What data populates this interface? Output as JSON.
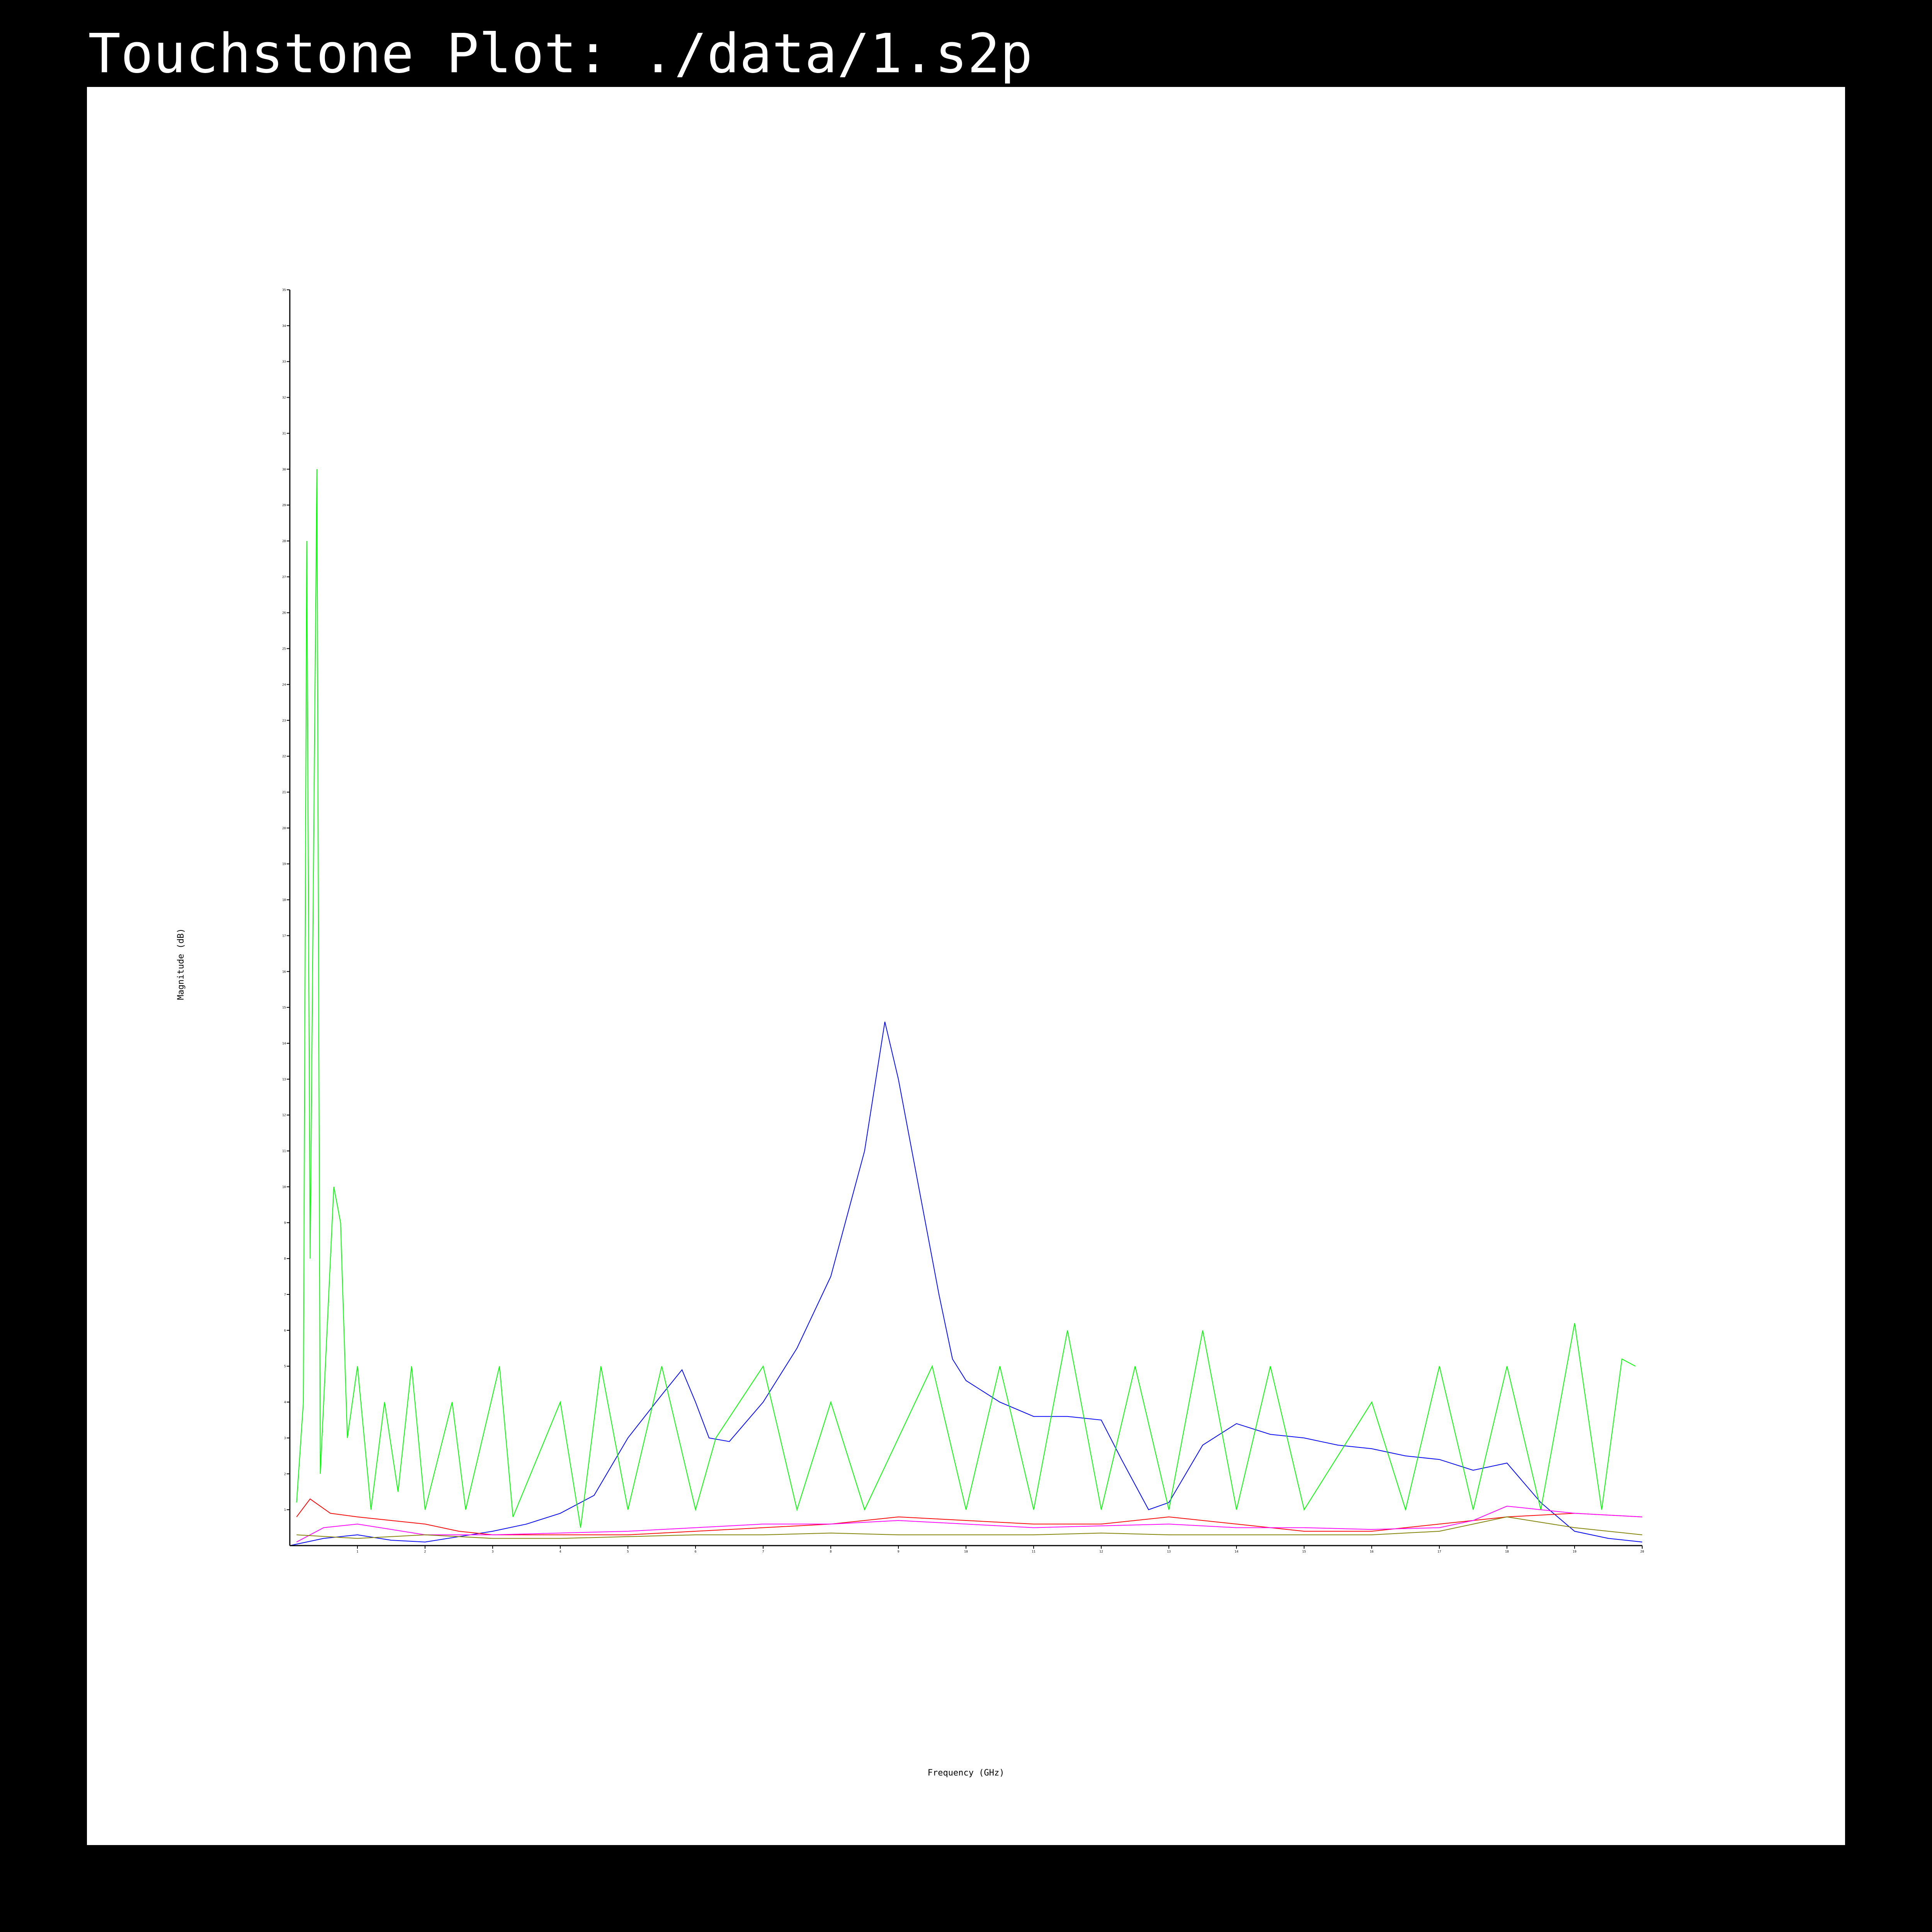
{
  "page": {
    "title": "Touchstone Plot: ./data/1.s2p"
  },
  "colors": {
    "background": "#000000",
    "panel": "#ffffff",
    "axis": "#000000"
  },
  "chart_data": {
    "type": "line",
    "title": "Touchstone Plot: ./data/1.s2p",
    "xlabel": "Frequency (GHz)",
    "ylabel": "Magnitude (dB)",
    "xlim": [
      0,
      20
    ],
    "ylim": [
      0,
      35
    ],
    "xticks": [
      1,
      2,
      3,
      4,
      5,
      6,
      7,
      8,
      9,
      10,
      11,
      12,
      13,
      14,
      15,
      16,
      17,
      18,
      19,
      20
    ],
    "yticks": [
      1,
      2,
      3,
      4,
      5,
      6,
      7,
      8,
      9,
      10,
      11,
      12,
      13,
      14,
      15,
      16,
      17,
      18,
      19,
      20,
      21,
      22,
      23,
      24,
      25,
      26,
      27,
      28,
      29,
      30,
      31,
      32,
      33,
      34,
      35
    ],
    "grid": false,
    "legend": "none",
    "series": [
      {
        "color": "#0000ff",
        "points": [
          [
            0,
            0
          ],
          [
            0.5,
            0.2
          ],
          [
            1,
            0.3
          ],
          [
            1.5,
            0.15
          ],
          [
            2,
            0.1
          ],
          [
            2.5,
            0.25
          ],
          [
            3,
            0.4
          ],
          [
            3.5,
            0.6
          ],
          [
            4,
            0.9
          ],
          [
            4.5,
            1.4
          ],
          [
            5,
            3
          ],
          [
            5.5,
            4.2
          ],
          [
            5.8,
            4.9
          ],
          [
            6,
            4
          ],
          [
            6.2,
            3
          ],
          [
            6.5,
            2.9
          ],
          [
            7,
            4
          ],
          [
            7.5,
            5.5
          ],
          [
            8,
            7.5
          ],
          [
            8.5,
            11
          ],
          [
            8.8,
            14.6
          ],
          [
            9,
            13
          ],
          [
            9.3,
            10
          ],
          [
            9.6,
            7
          ],
          [
            9.8,
            5.2
          ],
          [
            10,
            4.6
          ],
          [
            10.5,
            4
          ],
          [
            11,
            3.6
          ],
          [
            11.5,
            3.6
          ],
          [
            12,
            3.5
          ],
          [
            12.3,
            2.4
          ],
          [
            12.7,
            1
          ],
          [
            13,
            1.2
          ],
          [
            13.5,
            2.8
          ],
          [
            14,
            3.4
          ],
          [
            14.5,
            3.1
          ],
          [
            15,
            3
          ],
          [
            15.5,
            2.8
          ],
          [
            16,
            2.7
          ],
          [
            16.5,
            2.5
          ],
          [
            17,
            2.4
          ],
          [
            17.5,
            2.1
          ],
          [
            18,
            2.3
          ],
          [
            18.5,
            1.2
          ],
          [
            19,
            0.4
          ],
          [
            19.5,
            0.2
          ],
          [
            20,
            0.1
          ]
        ]
      },
      {
        "color": "#00ff00",
        "points": [
          [
            0.1,
            1.2
          ],
          [
            0.2,
            4
          ],
          [
            0.25,
            28
          ],
          [
            0.3,
            8
          ],
          [
            0.4,
            30
          ],
          [
            0.45,
            2
          ],
          [
            0.55,
            6
          ],
          [
            0.65,
            10
          ],
          [
            0.75,
            9
          ],
          [
            0.85,
            3
          ],
          [
            1,
            5
          ],
          [
            1.2,
            1
          ],
          [
            1.4,
            4
          ],
          [
            1.6,
            1.5
          ],
          [
            1.8,
            5
          ],
          [
            2,
            1
          ],
          [
            2.4,
            4
          ],
          [
            2.6,
            1
          ],
          [
            3.1,
            5
          ],
          [
            3.3,
            0.8
          ],
          [
            4,
            4
          ],
          [
            4.3,
            0.5
          ],
          [
            4.6,
            5
          ],
          [
            5,
            1
          ],
          [
            5.5,
            5
          ],
          [
            6,
            1
          ],
          [
            6.3,
            3
          ],
          [
            7,
            5
          ],
          [
            7.5,
            1
          ],
          [
            8,
            4
          ],
          [
            8.5,
            1
          ],
          [
            9.5,
            5
          ],
          [
            10,
            1
          ],
          [
            10.5,
            5
          ],
          [
            11,
            1
          ],
          [
            11.5,
            6
          ],
          [
            12,
            1
          ],
          [
            12.5,
            5
          ],
          [
            13,
            1
          ],
          [
            13.5,
            6
          ],
          [
            14,
            1
          ],
          [
            14.5,
            5
          ],
          [
            15,
            1
          ],
          [
            16,
            4
          ],
          [
            16.5,
            1
          ],
          [
            17,
            5
          ],
          [
            17.5,
            1
          ],
          [
            18,
            5
          ],
          [
            18.5,
            1
          ],
          [
            19,
            6.2
          ],
          [
            19.4,
            1
          ],
          [
            19.7,
            5.2
          ],
          [
            19.9,
            5
          ]
        ]
      },
      {
        "color": "#ff0000",
        "points": [
          [
            0.1,
            0.8
          ],
          [
            0.3,
            1.3
          ],
          [
            0.6,
            0.9
          ],
          [
            1,
            0.8
          ],
          [
            1.5,
            0.7
          ],
          [
            2,
            0.6
          ],
          [
            2.5,
            0.4
          ],
          [
            3,
            0.3
          ],
          [
            4,
            0.3
          ],
          [
            5,
            0.3
          ],
          [
            6,
            0.4
          ],
          [
            7,
            0.5
          ],
          [
            8,
            0.6
          ],
          [
            9,
            0.8
          ],
          [
            10,
            0.7
          ],
          [
            11,
            0.6
          ],
          [
            12,
            0.6
          ],
          [
            13,
            0.8
          ],
          [
            14,
            0.6
          ],
          [
            15,
            0.4
          ],
          [
            16,
            0.4
          ],
          [
            17,
            0.6
          ],
          [
            18,
            0.8
          ],
          [
            19,
            0.9
          ],
          [
            20,
            0.8
          ]
        ]
      },
      {
        "color": "#ff00ff",
        "points": [
          [
            0.1,
            0.1
          ],
          [
            0.5,
            0.5
          ],
          [
            1,
            0.6
          ],
          [
            2,
            0.3
          ],
          [
            3,
            0.3
          ],
          [
            4,
            0.35
          ],
          [
            5,
            0.4
          ],
          [
            6,
            0.5
          ],
          [
            7,
            0.6
          ],
          [
            8,
            0.6
          ],
          [
            9,
            0.7
          ],
          [
            10,
            0.6
          ],
          [
            11,
            0.5
          ],
          [
            12,
            0.55
          ],
          [
            13,
            0.6
          ],
          [
            14,
            0.5
          ],
          [
            15,
            0.5
          ],
          [
            16,
            0.45
          ],
          [
            17,
            0.5
          ],
          [
            17.5,
            0.7
          ],
          [
            18,
            1.1
          ],
          [
            18.5,
            1
          ],
          [
            19,
            0.9
          ],
          [
            19.5,
            0.85
          ],
          [
            20,
            0.8
          ]
        ]
      },
      {
        "color": "#808000",
        "points": [
          [
            0.1,
            0.3
          ],
          [
            1,
            0.2
          ],
          [
            2,
            0.3
          ],
          [
            3,
            0.2
          ],
          [
            4,
            0.2
          ],
          [
            5,
            0.25
          ],
          [
            6,
            0.3
          ],
          [
            7,
            0.3
          ],
          [
            8,
            0.35
          ],
          [
            9,
            0.3
          ],
          [
            10,
            0.3
          ],
          [
            11,
            0.3
          ],
          [
            12,
            0.35
          ],
          [
            13,
            0.3
          ],
          [
            14,
            0.3
          ],
          [
            15,
            0.3
          ],
          [
            16,
            0.3
          ],
          [
            17,
            0.4
          ],
          [
            18,
            0.8
          ],
          [
            19,
            0.5
          ],
          [
            20,
            0.3
          ]
        ]
      }
    ]
  }
}
